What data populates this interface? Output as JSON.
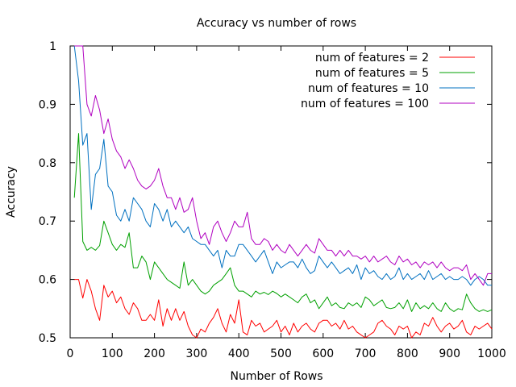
{
  "chart_data": {
    "type": "line",
    "title": "Accuracy vs number of rows",
    "xlabel": "Number of Rows",
    "ylabel": "Accuracy",
    "xlim": [
      0,
      1000
    ],
    "ylim": [
      0.5,
      1
    ],
    "x_ticks": [
      0,
      100,
      200,
      300,
      400,
      500,
      600,
      700,
      800,
      900,
      1000
    ],
    "y_ticks": [
      0.5,
      0.6,
      0.7,
      0.8,
      0.9,
      1
    ],
    "x_tick_labels": [
      "0",
      "100",
      "200",
      "300",
      "400",
      "500",
      "600",
      "700",
      "800",
      "900",
      "1000"
    ],
    "y_tick_labels": [
      "0.5",
      "0.6",
      "0.7",
      "0.8",
      "0.9",
      "1"
    ],
    "grid": false,
    "legend_position": "top-right",
    "x": [
      10,
      20,
      30,
      40,
      50,
      60,
      70,
      80,
      90,
      100,
      110,
      120,
      130,
      140,
      150,
      160,
      170,
      180,
      190,
      200,
      210,
      220,
      230,
      240,
      250,
      260,
      270,
      280,
      290,
      300,
      310,
      320,
      330,
      340,
      350,
      360,
      370,
      380,
      390,
      400,
      410,
      420,
      430,
      440,
      450,
      460,
      470,
      480,
      490,
      500,
      510,
      520,
      530,
      540,
      550,
      560,
      570,
      580,
      590,
      600,
      610,
      620,
      630,
      640,
      650,
      660,
      670,
      680,
      690,
      700,
      710,
      720,
      730,
      740,
      750,
      760,
      770,
      780,
      790,
      800,
      810,
      820,
      830,
      840,
      850,
      860,
      870,
      880,
      890,
      900,
      910,
      920,
      930,
      940,
      950,
      960,
      970,
      980,
      990,
      1000
    ],
    "series": [
      {
        "name": "num of features = 2",
        "color": "#ff0000",
        "values": [
          0.6,
          0.6,
          0.568,
          0.6,
          0.58,
          0.55,
          0.53,
          0.59,
          0.57,
          0.58,
          0.56,
          0.57,
          0.55,
          0.54,
          0.56,
          0.55,
          0.53,
          0.53,
          0.54,
          0.53,
          0.565,
          0.52,
          0.55,
          0.53,
          0.55,
          0.53,
          0.545,
          0.52,
          0.505,
          0.5,
          0.515,
          0.51,
          0.525,
          0.535,
          0.55,
          0.525,
          0.51,
          0.54,
          0.525,
          0.565,
          0.51,
          0.505,
          0.53,
          0.52,
          0.525,
          0.51,
          0.515,
          0.52,
          0.53,
          0.51,
          0.52,
          0.505,
          0.525,
          0.51,
          0.52,
          0.525,
          0.515,
          0.51,
          0.525,
          0.53,
          0.53,
          0.52,
          0.525,
          0.515,
          0.53,
          0.515,
          0.52,
          0.51,
          0.505,
          0.5,
          0.505,
          0.51,
          0.525,
          0.53,
          0.52,
          0.515,
          0.505,
          0.52,
          0.515,
          0.52,
          0.5,
          0.51,
          0.505,
          0.525,
          0.52,
          0.535,
          0.52,
          0.51,
          0.52,
          0.525,
          0.515,
          0.52,
          0.53,
          0.51,
          0.505,
          0.52,
          0.515,
          0.52,
          0.525,
          0.515
        ]
      },
      {
        "name": "num of features = 5",
        "color": "#00a000",
        "values": [
          0.74,
          0.85,
          0.665,
          0.65,
          0.655,
          0.65,
          0.658,
          0.7,
          0.68,
          0.66,
          0.65,
          0.66,
          0.655,
          0.68,
          0.62,
          0.62,
          0.64,
          0.63,
          0.6,
          0.63,
          0.62,
          0.61,
          0.6,
          0.595,
          0.59,
          0.585,
          0.63,
          0.59,
          0.6,
          0.59,
          0.58,
          0.575,
          0.58,
          0.59,
          0.595,
          0.6,
          0.61,
          0.62,
          0.59,
          0.58,
          0.58,
          0.575,
          0.57,
          0.58,
          0.575,
          0.578,
          0.574,
          0.58,
          0.576,
          0.57,
          0.575,
          0.57,
          0.565,
          0.56,
          0.57,
          0.575,
          0.56,
          0.565,
          0.55,
          0.56,
          0.57,
          0.555,
          0.56,
          0.552,
          0.55,
          0.56,
          0.555,
          0.56,
          0.552,
          0.57,
          0.565,
          0.555,
          0.56,
          0.565,
          0.552,
          0.55,
          0.552,
          0.56,
          0.55,
          0.565,
          0.545,
          0.56,
          0.55,
          0.555,
          0.55,
          0.56,
          0.55,
          0.545,
          0.56,
          0.55,
          0.545,
          0.55,
          0.548,
          0.575,
          0.56,
          0.55,
          0.545,
          0.548,
          0.545,
          0.548
        ]
      },
      {
        "name": "num of features = 10",
        "color": "#0070c0",
        "values": [
          1.0,
          0.94,
          0.83,
          0.85,
          0.72,
          0.78,
          0.79,
          0.84,
          0.76,
          0.75,
          0.71,
          0.7,
          0.72,
          0.7,
          0.74,
          0.73,
          0.72,
          0.7,
          0.69,
          0.73,
          0.72,
          0.7,
          0.72,
          0.69,
          0.7,
          0.69,
          0.68,
          0.69,
          0.67,
          0.665,
          0.66,
          0.66,
          0.65,
          0.64,
          0.65,
          0.62,
          0.65,
          0.64,
          0.64,
          0.66,
          0.66,
          0.65,
          0.64,
          0.63,
          0.64,
          0.65,
          0.63,
          0.61,
          0.63,
          0.62,
          0.625,
          0.63,
          0.63,
          0.62,
          0.635,
          0.62,
          0.61,
          0.615,
          0.64,
          0.63,
          0.62,
          0.63,
          0.62,
          0.61,
          0.615,
          0.62,
          0.61,
          0.625,
          0.6,
          0.62,
          0.61,
          0.615,
          0.605,
          0.6,
          0.61,
          0.6,
          0.605,
          0.62,
          0.6,
          0.61,
          0.6,
          0.605,
          0.61,
          0.6,
          0.615,
          0.6,
          0.605,
          0.61,
          0.6,
          0.605,
          0.6,
          0.6,
          0.605,
          0.6,
          0.59,
          0.6,
          0.605,
          0.6,
          0.59,
          0.59
        ]
      },
      {
        "name": "num of features = 100",
        "color": "#b000c0",
        "values": [
          1.0,
          1.0,
          1.0,
          0.9,
          0.88,
          0.915,
          0.89,
          0.85,
          0.875,
          0.84,
          0.82,
          0.81,
          0.79,
          0.805,
          0.79,
          0.77,
          0.76,
          0.755,
          0.76,
          0.77,
          0.79,
          0.76,
          0.74,
          0.74,
          0.72,
          0.74,
          0.715,
          0.72,
          0.74,
          0.7,
          0.67,
          0.68,
          0.66,
          0.69,
          0.7,
          0.68,
          0.665,
          0.68,
          0.7,
          0.69,
          0.69,
          0.715,
          0.67,
          0.66,
          0.66,
          0.67,
          0.665,
          0.65,
          0.66,
          0.65,
          0.645,
          0.66,
          0.65,
          0.64,
          0.65,
          0.66,
          0.65,
          0.645,
          0.67,
          0.66,
          0.65,
          0.65,
          0.64,
          0.65,
          0.64,
          0.65,
          0.64,
          0.64,
          0.635,
          0.64,
          0.63,
          0.64,
          0.63,
          0.635,
          0.64,
          0.63,
          0.625,
          0.64,
          0.63,
          0.635,
          0.625,
          0.63,
          0.62,
          0.63,
          0.625,
          0.63,
          0.62,
          0.63,
          0.62,
          0.615,
          0.62,
          0.62,
          0.615,
          0.625,
          0.6,
          0.61,
          0.6,
          0.59,
          0.61,
          0.61
        ]
      }
    ]
  }
}
